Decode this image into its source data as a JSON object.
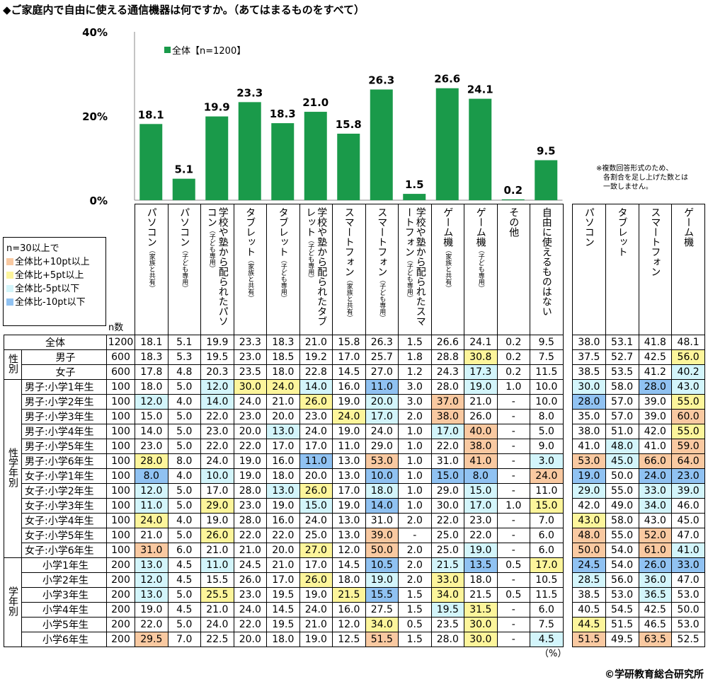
{
  "title": "◆ご家庭内で自由に使える通信機器は何ですか。（あてはまるものをすべて）",
  "chart_data": {
    "type": "bar",
    "ylim": [
      0,
      40
    ],
    "yticks": [
      "0%",
      "20%",
      "40%"
    ],
    "legend": "全体【n=1200】",
    "legend_position": "top-left",
    "color": "#1a9a4a",
    "categories": [
      "パソコン（家族と共有）",
      "パソコン（子ども専用）",
      "学校や塾から配られたパソコン（子ども専用）",
      "タブレット（家族と共有）",
      "タブレット（子ども専用）",
      "学校や塾から配られたタブレット（子ども専用）",
      "スマートフォン（家族と共有）",
      "スマートフォン（子ども専用）",
      "学校や塾から配られたスマートフォン",
      "ゲーム機（家族と共有）",
      "ゲーム機（子ども専用）",
      "その他",
      "自由に使えるものはない"
    ],
    "values": [
      18.1,
      5.1,
      19.9,
      23.3,
      18.3,
      21.0,
      15.8,
      26.3,
      1.5,
      26.6,
      24.1,
      0.2,
      9.5
    ]
  },
  "note": "※複数回答形式のため、\n　各割合を足し上げた数とは\n　一致しません。",
  "legend": {
    "title": "n=30以上で",
    "items": [
      {
        "label": "全体比+10pt以上",
        "color": "#f9c9a1"
      },
      {
        "label": "全体比+5pt以上",
        "color": "#fdf59b"
      },
      {
        "label": "全体比-5pt以下",
        "color": "#d3f5fb"
      },
      {
        "label": "全体比-10pt以下",
        "color": "#90c2f2"
      }
    ]
  },
  "n_label": "n数",
  "columns": [
    {
      "main": "パソコン",
      "sub": "（家族と共有）"
    },
    {
      "main": "パソコン",
      "sub": "（子ども専用）"
    },
    {
      "main": "学校や塾から配られたパソコン",
      "sub": "（子ども専用）"
    },
    {
      "main": "タブレット",
      "sub": "（家族と共有）"
    },
    {
      "main": "タブレット",
      "sub": "（子ども専用）"
    },
    {
      "main": "学校や塾から配られたタブレット",
      "sub": "（子ども専用）"
    },
    {
      "main": "スマートフォン",
      "sub": "（家族と共有）"
    },
    {
      "main": "スマートフォン",
      "sub": "（子ども専用）"
    },
    {
      "main": "学校や塾から配られたスマートフォン",
      "sub": "（子ども専用）"
    },
    {
      "main": "ゲーム機",
      "sub": "（家族と共有）"
    },
    {
      "main": "ゲーム機",
      "sub": "（子ども専用）"
    },
    {
      "main": "その他",
      "sub": ""
    },
    {
      "main": "自由に使えるものはない",
      "sub": ""
    }
  ],
  "right_columns": [
    "パソコン",
    "タブレット",
    "スマートフォン",
    "ゲーム機"
  ],
  "groups": [
    {
      "label": "性別",
      "start": 1,
      "span": 2
    },
    {
      "label": "性学年別",
      "start": 3,
      "span": 12
    },
    {
      "label": "学年別",
      "start": 15,
      "span": 6
    }
  ],
  "rows": [
    {
      "label": "全体",
      "n": "1200",
      "v": [
        "18.1",
        "5.1",
        "19.9",
        "23.3",
        "18.3",
        "21.0",
        "15.8",
        "26.3",
        "1.5",
        "26.6",
        "24.1",
        "0.2",
        "9.5"
      ],
      "r": [
        "38.0",
        "53.1",
        "41.8",
        "48.1"
      ],
      "hl": ".................."
    },
    {
      "label": "男子",
      "n": "600",
      "v": [
        "18.3",
        "5.3",
        "19.5",
        "23.0",
        "18.5",
        "19.2",
        "17.0",
        "25.7",
        "1.8",
        "28.8",
        "30.8",
        "0.2",
        "7.5"
      ],
      "r": [
        "37.5",
        "52.7",
        "42.5",
        "56.0"
      ],
      "hl": "..........y.....y"
    },
    {
      "label": "女子",
      "n": "600",
      "v": [
        "17.8",
        "4.8",
        "20.3",
        "23.5",
        "18.0",
        "22.8",
        "14.5",
        "27.0",
        "1.2",
        "24.3",
        "17.3",
        "0.2",
        "11.5"
      ],
      "r": [
        "38.5",
        "53.5",
        "41.2",
        "40.2"
      ],
      "hl": "..........c.....c"
    },
    {
      "label": "男子:小学1年生",
      "n": "100",
      "v": [
        "18.0",
        "5.0",
        "12.0",
        "30.0",
        "24.0",
        "14.0",
        "16.0",
        "11.0",
        "3.0",
        "28.0",
        "19.0",
        "1.0",
        "10.0"
      ],
      "r": [
        "30.0",
        "58.0",
        "28.0",
        "43.0"
      ],
      "hl": "..cyyc.b..c..c.bc"
    },
    {
      "label": "男子:小学2年生",
      "n": "100",
      "v": [
        "12.0",
        "4.0",
        "14.0",
        "24.0",
        "21.0",
        "26.0",
        "19.0",
        "20.0",
        "3.0",
        "37.0",
        "21.0",
        "-",
        "10.0"
      ],
      "r": [
        "28.0",
        "57.0",
        "39.0",
        "55.0"
      ],
      "hl": "c.c..y.c.o...b..y"
    },
    {
      "label": "男子:小学3年生",
      "n": "100",
      "v": [
        "15.0",
        "5.0",
        "22.0",
        "23.0",
        "20.0",
        "23.0",
        "24.0",
        "17.0",
        "2.0",
        "38.0",
        "26.0",
        "-",
        "8.0"
      ],
      "r": [
        "35.0",
        "57.0",
        "39.0",
        "60.0"
      ],
      "hl": "......yc.o......o"
    },
    {
      "label": "男子:小学4年生",
      "n": "100",
      "v": [
        "14.0",
        "5.0",
        "23.0",
        "20.0",
        "13.0",
        "24.0",
        "19.0",
        "24.0",
        "1.0",
        "17.0",
        "40.0",
        "-",
        "5.0"
      ],
      "r": [
        "38.0",
        "51.0",
        "42.0",
        "55.0"
      ],
      "hl": "....c....co.....y"
    },
    {
      "label": "男子:小学5年生",
      "n": "100",
      "v": [
        "23.0",
        "5.0",
        "22.0",
        "22.0",
        "17.0",
        "17.0",
        "11.0",
        "29.0",
        "1.0",
        "22.0",
        "38.0",
        "-",
        "9.0"
      ],
      "r": [
        "41.0",
        "48.0",
        "41.0",
        "59.0"
      ],
      "hl": "..........o...c.o"
    },
    {
      "label": "男子:小学6年生",
      "n": "100",
      "v": [
        "28.0",
        "8.0",
        "24.0",
        "19.0",
        "16.0",
        "11.0",
        "13.0",
        "53.0",
        "1.0",
        "31.0",
        "41.0",
        "-",
        "3.0"
      ],
      "r": [
        "53.0",
        "45.0",
        "66.0",
        "64.0"
      ],
      "hl": "y....b.o..o.cocoo"
    },
    {
      "label": "女子:小学1年生",
      "n": "100",
      "v": [
        "8.0",
        "4.0",
        "10.0",
        "19.0",
        "18.0",
        "20.0",
        "13.0",
        "10.0",
        "1.0",
        "15.0",
        "8.0",
        "-",
        "24.0"
      ],
      "r": [
        "19.0",
        "50.0",
        "24.0",
        "23.0"
      ],
      "hl": "b.c....b.bb.ob.bb"
    },
    {
      "label": "女子:小学2年生",
      "n": "100",
      "v": [
        "12.0",
        "5.0",
        "17.0",
        "28.0",
        "13.0",
        "26.0",
        "17.0",
        "18.0",
        "1.0",
        "29.0",
        "15.0",
        "-",
        "11.0"
      ],
      "r": [
        "29.0",
        "55.0",
        "33.0",
        "39.0"
      ],
      "hl": "c...cy.c..c..c.cc"
    },
    {
      "label": "女子:小学3年生",
      "n": "100",
      "v": [
        "11.0",
        "5.0",
        "29.0",
        "23.0",
        "19.0",
        "15.0",
        "19.0",
        "14.0",
        "1.0",
        "30.0",
        "17.0",
        "1.0",
        "15.0"
      ],
      "r": [
        "42.0",
        "49.0",
        "34.0",
        "46.0"
      ],
      "hl": "c.y..c.b..c.y..c."
    },
    {
      "label": "女子:小学4年生",
      "n": "100",
      "v": [
        "24.0",
        "4.0",
        "19.0",
        "28.0",
        "16.0",
        "24.0",
        "13.0",
        "31.0",
        "2.0",
        "22.0",
        "23.0",
        "-",
        "7.0"
      ],
      "r": [
        "43.0",
        "58.0",
        "43.0",
        "45.0"
      ],
      "hl": "y............y..."
    },
    {
      "label": "女子:小学5年生",
      "n": "100",
      "v": [
        "21.0",
        "5.0",
        "26.0",
        "22.0",
        "22.0",
        "25.0",
        "13.0",
        "39.0",
        "-",
        "25.0",
        "22.0",
        "-",
        "6.0"
      ],
      "r": [
        "48.0",
        "55.0",
        "52.0",
        "47.0"
      ],
      "hl": "..y....o.....o.o."
    },
    {
      "label": "女子:小学6年生",
      "n": "100",
      "v": [
        "31.0",
        "6.0",
        "21.0",
        "21.0",
        "20.0",
        "27.0",
        "12.0",
        "50.0",
        "2.0",
        "25.0",
        "19.0",
        "-",
        "6.0"
      ],
      "r": [
        "50.0",
        "54.0",
        "61.0",
        "41.0"
      ],
      "hl": "o....y.o..c..o.oc"
    },
    {
      "label": "小学1年生",
      "n": "200",
      "v": [
        "13.0",
        "4.5",
        "11.0",
        "24.5",
        "21.0",
        "17.0",
        "14.5",
        "10.5",
        "2.0",
        "21.5",
        "13.5",
        "0.5",
        "17.0"
      ],
      "r": [
        "24.5",
        "54.0",
        "26.0",
        "33.0"
      ],
      "hl": "c.c....b.cb.yb.bb"
    },
    {
      "label": "小学2年生",
      "n": "200",
      "v": [
        "12.0",
        "4.5",
        "15.5",
        "26.0",
        "17.0",
        "26.0",
        "18.0",
        "19.0",
        "2.0",
        "33.0",
        "18.0",
        "-",
        "10.5"
      ],
      "r": [
        "28.5",
        "56.0",
        "36.0",
        "47.0"
      ],
      "hl": "c....y.c.y...c.c."
    },
    {
      "label": "小学3年生",
      "n": "200",
      "v": [
        "13.0",
        "5.0",
        "25.5",
        "23.0",
        "19.5",
        "19.0",
        "21.5",
        "15.5",
        "1.5",
        "34.0",
        "21.5",
        "0.5",
        "11.5"
      ],
      "r": [
        "38.5",
        "53.0",
        "36.5",
        "53.0"
      ],
      "hl": "c.y...yb.y.....c."
    },
    {
      "label": "小学4年生",
      "n": "200",
      "v": [
        "19.0",
        "4.5",
        "21.0",
        "24.0",
        "14.5",
        "24.0",
        "16.0",
        "27.5",
        "1.5",
        "19.5",
        "31.5",
        "-",
        "6.0"
      ],
      "r": [
        "40.5",
        "54.5",
        "42.5",
        "50.0"
      ],
      "hl": ".........cy......"
    },
    {
      "label": "小学5年生",
      "n": "200",
      "v": [
        "22.0",
        "5.0",
        "24.0",
        "22.0",
        "19.5",
        "21.0",
        "12.0",
        "34.0",
        "0.5",
        "23.5",
        "30.0",
        "-",
        "7.5"
      ],
      "r": [
        "44.5",
        "51.5",
        "46.5",
        "53.0"
      ],
      "hl": ".......y..y..y..."
    },
    {
      "label": "小学6年生",
      "n": "200",
      "v": [
        "29.5",
        "7.0",
        "22.5",
        "20.0",
        "18.0",
        "19.0",
        "12.5",
        "51.5",
        "1.5",
        "28.0",
        "30.0",
        "-",
        "4.5"
      ],
      "r": [
        "51.5",
        "49.5",
        "63.5",
        "52.5"
      ],
      "hl": "o......o..y.co.o."
    }
  ],
  "unit": "（%）",
  "copyright": "©学研教育総合研究所"
}
